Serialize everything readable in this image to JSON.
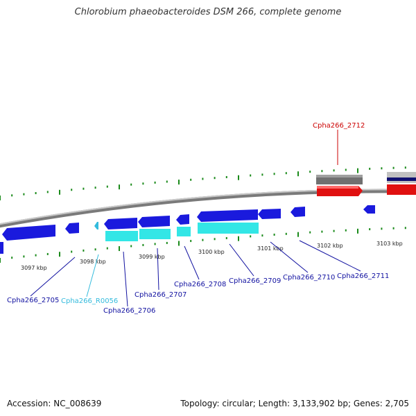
{
  "title": "Chlorobium phaeobacteroides DSM 266, complete genome",
  "footer": {
    "accession": "Accession: NC_008639",
    "topology": "Topology: circular; Length: 3,133,902 bp; Genes: 2,705"
  },
  "colors": {
    "backbone": "#909090",
    "tick": "#1a8a1a",
    "gene_forward": "#1a1add",
    "cds_reverse": "#33e6e6",
    "gene_highlight": "#e01010",
    "gene_grey": "#707070",
    "label_blue": "#1010a0",
    "label_red": "#cc0000",
    "label_cyan": "#33bbdd"
  },
  "scale_labels": [
    "3097 kbp",
    "3098 kbp",
    "3099 kbp",
    "3100 kbp",
    "3101 kbp",
    "3102 kbp",
    "3103 kbp"
  ],
  "gene_labels": [
    {
      "id": "Cpha266_2705",
      "color": "label_blue"
    },
    {
      "id": "Cpha266_R0056",
      "color": "label_cyan"
    },
    {
      "id": "Cpha266_2706",
      "color": "label_blue"
    },
    {
      "id": "Cpha266_2707",
      "color": "label_blue"
    },
    {
      "id": "Cpha266_2708",
      "color": "label_blue"
    },
    {
      "id": "Cpha266_2709",
      "color": "label_blue"
    },
    {
      "id": "Cpha266_2710",
      "color": "label_blue"
    },
    {
      "id": "Cpha266_2711",
      "color": "label_blue"
    },
    {
      "id": "Cpha266_2712",
      "color": "label_red"
    }
  ]
}
